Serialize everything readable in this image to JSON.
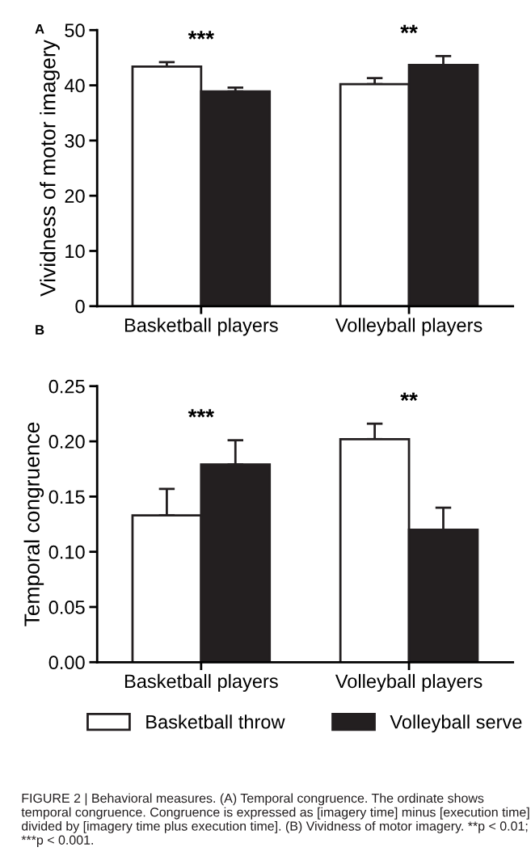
{
  "chart_data": [
    {
      "type": "bar",
      "title": "A",
      "ylabel": "Vividness of motor imagery",
      "categories": [
        "Basketball players",
        "Volleyball players"
      ],
      "series": [
        {
          "color": "#ffffff",
          "values": [
            43.4,
            40.2
          ],
          "errors": [
            [
              43.4,
              44.2
            ],
            [
              40.2,
              41.3
            ]
          ]
        },
        {
          "color": "#231f20",
          "values": [
            38.9,
            43.7
          ],
          "errors": [
            [
              38.9,
              39.6
            ],
            [
              43.7,
              45.3
            ]
          ]
        }
      ],
      "ylim": [
        0,
        50
      ],
      "yticks": [
        0,
        10,
        20,
        30,
        40,
        50
      ],
      "grid": false,
      "annotations": [
        "***",
        "**"
      ]
    },
    {
      "type": "bar",
      "title": "B",
      "ylabel": "Temporal congruence",
      "categories": [
        "Basketball players",
        "Volleyball players"
      ],
      "series": [
        {
          "name": "Basketball throw",
          "color": "#ffffff",
          "values": [
            0.133,
            0.202
          ],
          "errors": [
            [
              0.133,
              0.157
            ],
            [
              0.202,
              0.216
            ]
          ]
        },
        {
          "name": "Volleyball serve",
          "color": "#231f20",
          "values": [
            0.179,
            0.12
          ],
          "errors": [
            [
              0.179,
              0.201
            ],
            [
              0.12,
              0.14
            ]
          ]
        }
      ],
      "ylim": [
        0,
        0.25
      ],
      "yticks": [
        {
          "value": 0,
          "label": "0.00"
        },
        {
          "value": 0.05,
          "label": "0.05"
        },
        {
          "value": 0.1,
          "label": "0.10"
        },
        {
          "value": 0.15,
          "label": "0.15"
        },
        {
          "value": 0.2,
          "label": "0.20"
        },
        {
          "value": 0.25,
          "label": "0.25"
        }
      ],
      "grid": false,
      "legend": "bottom",
      "annotations": [
        "***",
        "**",
        "FIGURE 2 | Behavioral measures. (A) Temporal congruence. The ordinate shows temporal congruence. Congruence is expressed as [imagery time] minus [execution time] divided by [imagery time plus execution time]. (B) Vividness of motor imagery. **p < 0.01; ***p < 0.001."
      ]
    }
  ]
}
